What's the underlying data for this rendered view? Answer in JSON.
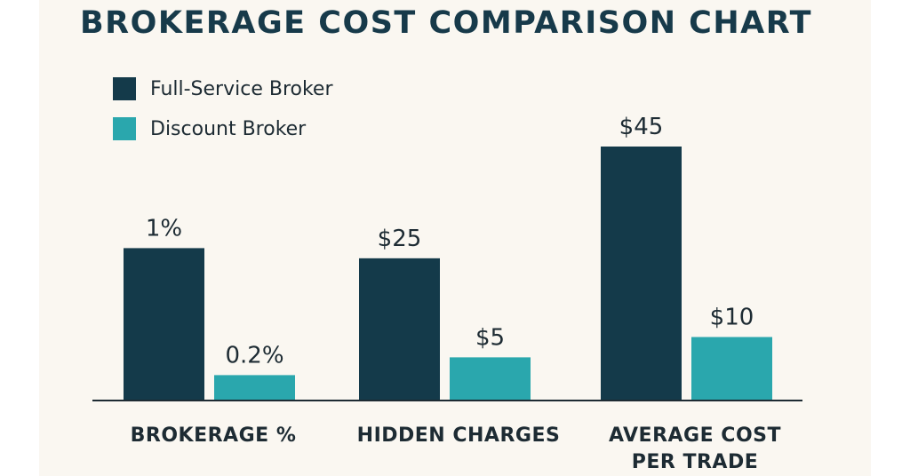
{
  "colors": {
    "full_service": "#143a4a",
    "discount": "#2aa7ad",
    "axis": "#1d2b33"
  },
  "chart_data": {
    "type": "bar",
    "title": "BROKERAGE COST COMPARISON CHART",
    "categories": [
      [
        "BROKERAGE %"
      ],
      [
        "HIDDEN CHARGES"
      ],
      [
        "AVERAGE COST",
        "PER TRADE"
      ]
    ],
    "series": [
      {
        "name": "Full-Service Broker",
        "values": [
          1,
          25,
          45
        ],
        "labels": [
          "1%",
          "$25",
          "$45"
        ],
        "heights": [
          0.6,
          0.56,
          1.0
        ]
      },
      {
        "name": "Discount Broker",
        "values": [
          0.2,
          5,
          10
        ],
        "labels": [
          "0.2%",
          "$5",
          "$10"
        ],
        "heights": [
          0.1,
          0.17,
          0.25
        ]
      }
    ],
    "note": "Each category uses its own units; heights are the relative bar heights as drawn (fraction of the tallest bar).",
    "legend": "top-left",
    "grid": false
  }
}
